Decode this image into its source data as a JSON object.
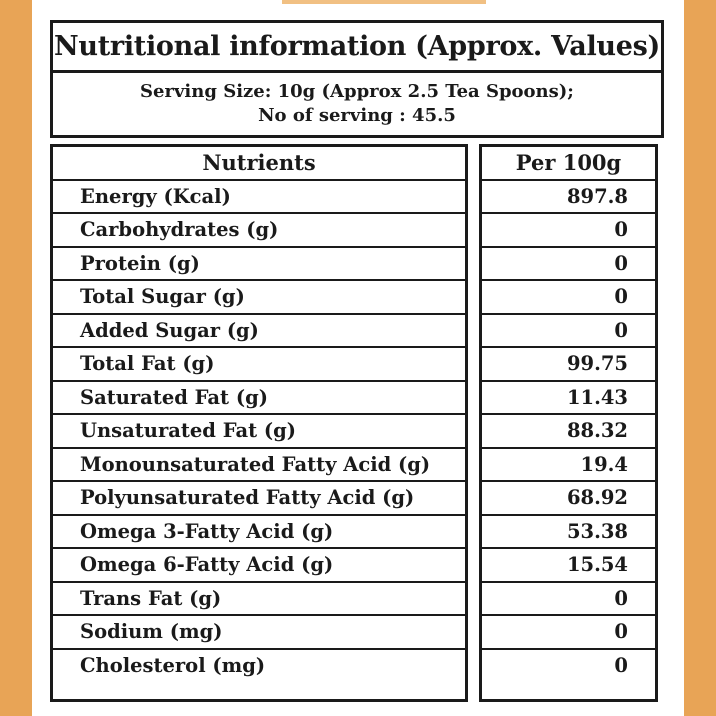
{
  "label": {
    "title": "Nutritional information (Approx. Values)",
    "serving_line1": "Serving Size: 10g (Approx 2.5 Tea Spoons);",
    "serving_line2": "No of serving : 45.5"
  },
  "table": {
    "header_nutrient": "Nutrients",
    "header_value": "Per 100g",
    "rows": [
      {
        "nutrient": "Energy (Kcal)",
        "value": "897.8"
      },
      {
        "nutrient": "Carbohydrates (g)",
        "value": "0"
      },
      {
        "nutrient": "Protein (g)",
        "value": "0"
      },
      {
        "nutrient": "Total Sugar (g)",
        "value": "0"
      },
      {
        "nutrient": "Added Sugar (g)",
        "value": "0"
      },
      {
        "nutrient": "Total Fat (g)",
        "value": "99.75"
      },
      {
        "nutrient": "Saturated Fat (g)",
        "value": "11.43"
      },
      {
        "nutrient": "Unsaturated Fat (g)",
        "value": "88.32"
      },
      {
        "nutrient": "Monounsaturated Fatty Acid (g)",
        "value": "19.4"
      },
      {
        "nutrient": "Polyunsaturated Fatty Acid (g)",
        "value": "68.92"
      },
      {
        "nutrient": "Omega 3-Fatty Acid (g)",
        "value": "53.38"
      },
      {
        "nutrient": "Omega 6-Fatty Acid (g)",
        "value": "15.54"
      },
      {
        "nutrient": "Trans Fat (g)",
        "value": "0"
      },
      {
        "nutrient": "Sodium (mg)",
        "value": "0"
      },
      {
        "nutrient": "Cholesterol (mg)",
        "value": "0"
      }
    ]
  }
}
